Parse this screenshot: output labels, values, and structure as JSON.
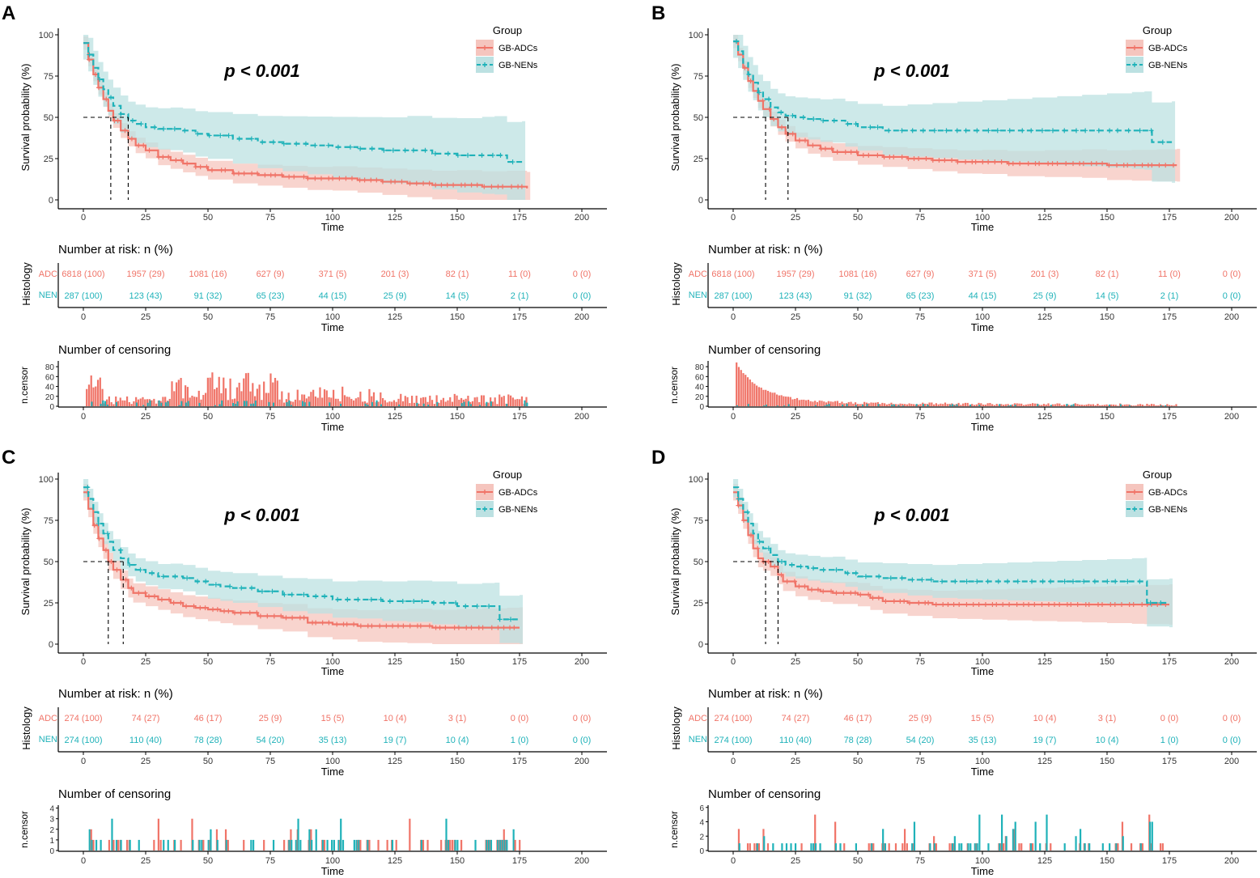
{
  "colors": {
    "adc": "#F07468",
    "nen": "#1FB2B9",
    "adc_band": "#F5C5BE",
    "nen_band": "#BCE1E2",
    "axis": "#000000",
    "tick": "#333333"
  },
  "legend": {
    "title": "Group",
    "adc": "GB-ADCs",
    "nen": "GB-NENs"
  },
  "labels": {
    "x": "Time",
    "y_surv": "Survival probability (%)",
    "risk_title": "Number at risk: n (%)",
    "risk_y": "Histology",
    "risk_rows": [
      "ADC",
      "NEN"
    ],
    "cens_title": "Number of censoring",
    "cens_y": "n.censor"
  },
  "chart_data": [
    {
      "type": "line",
      "panel": "A",
      "pvalue": "p < 0.001",
      "xlim": [
        0,
        200
      ],
      "xticks": [
        "0",
        "25",
        "50",
        "75",
        "100",
        "125",
        "150",
        "175",
        "200"
      ],
      "ylim": [
        0,
        100
      ],
      "yticks": [
        "0",
        "25",
        "50",
        "75",
        "100"
      ],
      "median_adc": 11,
      "median_nen": 18,
      "series": [
        {
          "name": "GB-ADCs",
          "x": [
            0,
            2,
            4,
            6,
            8,
            10,
            12,
            15,
            18,
            21,
            25,
            30,
            35,
            40,
            45,
            50,
            60,
            70,
            80,
            90,
            100,
            110,
            120,
            130,
            140,
            150,
            160,
            170,
            178
          ],
          "y": [
            95,
            85,
            76,
            68,
            61,
            54,
            48,
            42,
            37,
            33,
            30,
            26,
            24,
            22,
            20,
            18,
            16,
            15,
            14,
            13,
            13,
            12,
            11,
            10,
            9,
            9,
            8,
            8,
            7
          ]
        },
        {
          "name": "GB-NENs",
          "x": [
            0,
            2,
            4,
            6,
            8,
            10,
            12,
            15,
            18,
            21,
            25,
            30,
            35,
            40,
            45,
            50,
            60,
            70,
            80,
            90,
            100,
            110,
            120,
            130,
            140,
            150,
            160,
            165,
            170,
            176
          ],
          "y": [
            95,
            88,
            80,
            73,
            67,
            62,
            57,
            52,
            48,
            46,
            44,
            43,
            43,
            42,
            40,
            39,
            37,
            35,
            34,
            33,
            32,
            31,
            30,
            30,
            28,
            27,
            27,
            27,
            23,
            23
          ]
        }
      ],
      "risk": {
        "adc": [
          "6818 (100)",
          "1957 (29)",
          "1081 (16)",
          "627 (9)",
          "371 (5)",
          "201 (3)",
          "82 (1)",
          "11 (0)",
          "0 (0)"
        ],
        "nen": [
          "287 (100)",
          "123 (43)",
          "91 (32)",
          "65 (23)",
          "44 (15)",
          "25 (9)",
          "14 (5)",
          "2 (1)",
          "0 (0)"
        ]
      },
      "censor": {
        "yticks": [
          "0",
          "20",
          "40",
          "60",
          "80"
        ],
        "ymax": 90,
        "pattern": "spread_high"
      }
    },
    {
      "type": "line",
      "panel": "B",
      "pvalue": "p < 0.001",
      "xlim": [
        0,
        200
      ],
      "xticks": [
        "0",
        "25",
        "50",
        "75",
        "100",
        "125",
        "150",
        "175",
        "200"
      ],
      "ylim": [
        0,
        100
      ],
      "yticks": [
        "0",
        "25",
        "50",
        "75",
        "100"
      ],
      "median_adc": 13,
      "median_nen": 22,
      "series": [
        {
          "name": "GB-ADCs",
          "x": [
            0,
            2,
            4,
            6,
            8,
            10,
            12,
            15,
            18,
            21,
            25,
            30,
            35,
            40,
            50,
            60,
            70,
            80,
            90,
            100,
            110,
            125,
            140,
            150,
            160,
            170,
            178
          ],
          "y": [
            96,
            88,
            80,
            72,
            66,
            60,
            55,
            49,
            44,
            40,
            36,
            33,
            31,
            29,
            27,
            26,
            25,
            24,
            23,
            23,
            22,
            22,
            22,
            21,
            21,
            21,
            21
          ]
        },
        {
          "name": "GB-NENs",
          "x": [
            0,
            2,
            4,
            6,
            8,
            10,
            12,
            15,
            18,
            21,
            25,
            30,
            35,
            40,
            45,
            50,
            60,
            70,
            80,
            90,
            100,
            110,
            120,
            130,
            140,
            150,
            160,
            165,
            168,
            176
          ],
          "y": [
            96,
            90,
            83,
            76,
            71,
            65,
            61,
            56,
            53,
            51,
            50,
            49,
            48,
            48,
            46,
            44,
            42,
            42,
            42,
            42,
            42,
            42,
            42,
            42,
            42,
            42,
            42,
            42,
            35,
            35
          ]
        }
      ],
      "risk": {
        "adc": [
          "6818 (100)",
          "1957 (29)",
          "1081 (16)",
          "627 (9)",
          "371 (5)",
          "201 (3)",
          "82 (1)",
          "11 (0)",
          "0 (0)"
        ],
        "nen": [
          "287 (100)",
          "123 (43)",
          "91 (32)",
          "65 (23)",
          "44 (15)",
          "25 (9)",
          "14 (5)",
          "2 (1)",
          "0 (0)"
        ]
      },
      "censor": {
        "yticks": [
          "0",
          "20",
          "40",
          "60",
          "80"
        ],
        "ymax": 90,
        "pattern": "decay"
      }
    },
    {
      "type": "line",
      "panel": "C",
      "pvalue": "p < 0.001",
      "xlim": [
        0,
        200
      ],
      "xticks": [
        "0",
        "25",
        "50",
        "75",
        "100",
        "125",
        "150",
        "175",
        "200"
      ],
      "ylim": [
        0,
        100
      ],
      "yticks": [
        "0",
        "25",
        "50",
        "75",
        "100"
      ],
      "median_adc": 10,
      "median_nen": 16,
      "series": [
        {
          "name": "GB-ADCs",
          "x": [
            0,
            2,
            4,
            6,
            8,
            10,
            12,
            15,
            18,
            20,
            25,
            30,
            35,
            40,
            45,
            50,
            55,
            60,
            70,
            80,
            90,
            100,
            110,
            120,
            130,
            140,
            150,
            160,
            170,
            175
          ],
          "y": [
            92,
            82,
            72,
            64,
            57,
            50,
            45,
            39,
            34,
            31,
            29,
            27,
            25,
            23,
            22,
            21,
            20,
            19,
            17,
            16,
            13,
            12,
            11,
            11,
            11,
            10,
            10,
            10,
            10,
            10
          ]
        },
        {
          "name": "GB-NENs",
          "x": [
            0,
            2,
            4,
            6,
            8,
            10,
            12,
            15,
            18,
            21,
            25,
            30,
            35,
            40,
            45,
            50,
            55,
            60,
            70,
            80,
            90,
            100,
            110,
            120,
            130,
            140,
            150,
            160,
            165,
            167,
            175
          ],
          "y": [
            95,
            88,
            80,
            73,
            67,
            62,
            57,
            52,
            48,
            45,
            43,
            41,
            41,
            40,
            38,
            36,
            35,
            34,
            32,
            30,
            29,
            27,
            27,
            26,
            26,
            25,
            23,
            23,
            23,
            15,
            15
          ]
        }
      ],
      "risk": {
        "adc": [
          "274 (100)",
          "74 (27)",
          "46 (17)",
          "25 (9)",
          "15 (5)",
          "10 (4)",
          "3 (1)",
          "0 (0)",
          "0 (0)"
        ],
        "nen": [
          "274 (100)",
          "110 (40)",
          "78 (28)",
          "54 (20)",
          "35 (13)",
          "19 (7)",
          "10 (4)",
          "1 (0)",
          "0 (0)"
        ]
      },
      "censor": {
        "yticks": [
          "0",
          "1",
          "2",
          "3",
          "4"
        ],
        "ymax": 4.2,
        "pattern": "small"
      }
    },
    {
      "type": "line",
      "panel": "D",
      "pvalue": "p < 0.001",
      "xlim": [
        0,
        200
      ],
      "xticks": [
        "0",
        "25",
        "50",
        "75",
        "100",
        "125",
        "150",
        "175",
        "200"
      ],
      "ylim": [
        0,
        100
      ],
      "yticks": [
        "0",
        "25",
        "50",
        "75",
        "100"
      ],
      "median_adc": 13,
      "median_nen": 18,
      "series": [
        {
          "name": "GB-ADCs",
          "x": [
            0,
            2,
            4,
            6,
            8,
            10,
            12,
            15,
            18,
            20,
            25,
            30,
            35,
            40,
            50,
            55,
            60,
            70,
            80,
            90,
            100,
            110,
            120,
            130,
            140,
            150,
            160,
            165,
            175
          ],
          "y": [
            92,
            84,
            75,
            66,
            58,
            52,
            50,
            47,
            42,
            38,
            35,
            33,
            32,
            31,
            30,
            28,
            26,
            25,
            24,
            24,
            24,
            24,
            24,
            24,
            24,
            24,
            24,
            24,
            24
          ]
        },
        {
          "name": "GB-NENs",
          "x": [
            0,
            2,
            4,
            6,
            8,
            10,
            12,
            15,
            18,
            21,
            25,
            30,
            35,
            40,
            45,
            50,
            60,
            70,
            80,
            90,
            100,
            110,
            120,
            130,
            140,
            150,
            160,
            165,
            166,
            175
          ],
          "y": [
            95,
            88,
            80,
            73,
            67,
            62,
            58,
            54,
            50,
            48,
            47,
            46,
            45,
            45,
            43,
            41,
            40,
            39,
            38,
            38,
            38,
            38,
            38,
            38,
            38,
            38,
            38,
            38,
            25,
            25
          ]
        }
      ],
      "risk": {
        "adc": [
          "274 (100)",
          "74 (27)",
          "46 (17)",
          "25 (9)",
          "15 (5)",
          "10 (4)",
          "3 (1)",
          "0 (0)",
          "0 (0)"
        ],
        "nen": [
          "274 (100)",
          "110 (40)",
          "78 (28)",
          "54 (20)",
          "35 (13)",
          "19 (7)",
          "10 (4)",
          "1 (0)",
          "0 (0)"
        ]
      },
      "censor": {
        "yticks": [
          "0",
          "2",
          "4",
          "6"
        ],
        "ymax": 6.2,
        "pattern": "small_tall"
      }
    }
  ]
}
